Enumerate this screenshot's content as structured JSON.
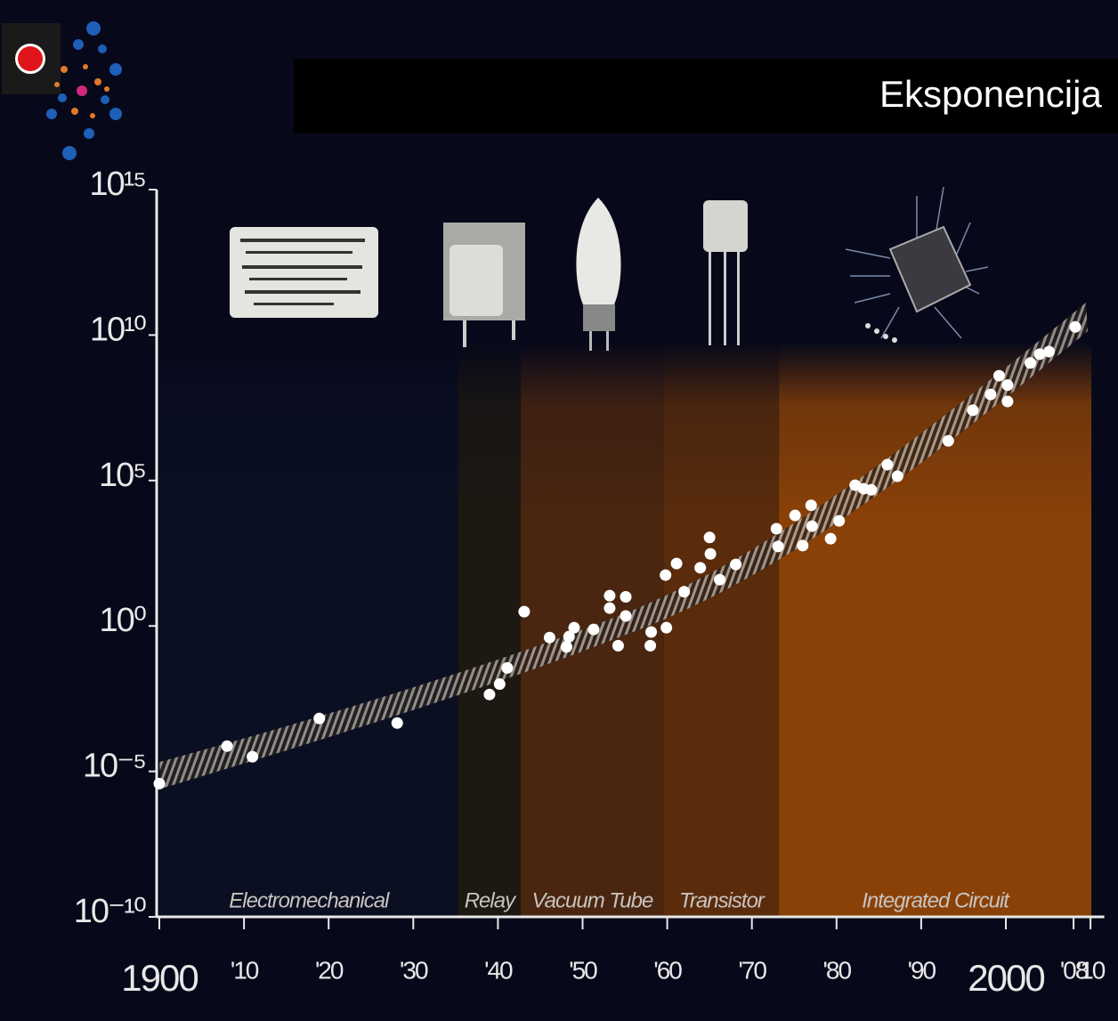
{
  "chart_data": {
    "type": "scatter",
    "title": "Eksponencija",
    "log_y": true,
    "color": "#ffffff",
    "x": [
      1900.0,
      1908.0,
      1911.0,
      1918.9,
      1928.1,
      1939.0,
      1940.2,
      1941.1,
      1943.1,
      1946.1,
      1948.1,
      1948.4,
      1949.0,
      1951.3,
      1953.2,
      1953.2,
      1954.2,
      1955.1,
      1955.1,
      1958.0,
      1958.1,
      1959.9,
      1959.8,
      1961.1,
      1962.0,
      1963.9,
      1965.0,
      1965.1,
      1966.2,
      1968.1,
      1972.9,
      1973.1,
      1975.1,
      1976.0,
      1977.0,
      1977.1,
      1979.3,
      1980.3,
      1982.2,
      1983.2,
      1984.1,
      1986.0,
      1987.2,
      1993.2,
      1996.1,
      1998.2,
      1999.2,
      2000.2,
      2000.2,
      2002.9,
      2004.0,
      2005.1,
      2008.2
    ],
    "values": [
      3.8e-06,
      7.4e-05,
      3.2e-05,
      0.00066,
      0.00046,
      0.0044,
      0.01,
      0.036,
      3.1,
      0.4,
      0.19,
      0.43,
      0.87,
      0.76,
      11,
      4.1,
      0.21,
      10,
      2.2,
      0.21,
      0.62,
      0.87,
      56,
      140,
      15,
      100,
      1100,
      300,
      39,
      130,
      2200,
      540,
      6300,
      580,
      14000,
      2700,
      1000,
      4100,
      69000,
      52000,
      48000,
      350000,
      140000,
      2300000,
      26000000,
      91000000,
      400000000.0,
      190000000.0,
      52000000.0,
      1100000000.0,
      2200000000.0,
      2700000000.0,
      19000000000.0
    ],
    "xlim": [
      1900,
      2011
    ],
    "ylim": [
      1e-10,
      1000000000000000.0
    ],
    "xticks": [
      {
        "value": 1900,
        "label": "1900"
      },
      {
        "value": 1910,
        "label": "'10"
      },
      {
        "value": 1920,
        "label": "'20"
      },
      {
        "value": 1930,
        "label": "'30"
      },
      {
        "value": 1940,
        "label": "'40"
      },
      {
        "value": 1950,
        "label": "'50"
      },
      {
        "value": 1960,
        "label": "'60"
      },
      {
        "value": 1970,
        "label": "'70"
      },
      {
        "value": 1980,
        "label": "'80"
      },
      {
        "value": 1990,
        "label": "'90"
      },
      {
        "value": 2000,
        "label": "2000"
      },
      {
        "value": 2008,
        "label": "'08"
      },
      {
        "value": 2010,
        "label": "'10"
      }
    ],
    "yticks": [
      {
        "value": 1000000000000000.0,
        "label": "10¹⁵"
      },
      {
        "value": 10000000000.0,
        "label": "10¹⁰"
      },
      {
        "value": 100000.0,
        "label": "10⁵"
      },
      {
        "value": 1,
        "label": "10⁰"
      },
      {
        "value": 1e-05,
        "label": "10⁻⁵"
      },
      {
        "value": 1e-10,
        "label": "10⁻¹⁰"
      }
    ],
    "eras": [
      {
        "name": "Electromechanical",
        "start": 1900,
        "end": 1935.3,
        "color": "#0b0f22"
      },
      {
        "name": "Relay",
        "start": 1935.3,
        "end": 1942.7,
        "color": "#1d1812"
      },
      {
        "name": "Vacuum Tube",
        "start": 1942.7,
        "end": 1959.6,
        "color": "#4a2610"
      },
      {
        "name": "Transistor",
        "start": 1959.6,
        "end": 1973.2,
        "color": "#5a2c0c"
      },
      {
        "name": "Integrated Circuit",
        "start": 1973.2,
        "end": 2010.1,
        "color": "#8a4108"
      }
    ]
  }
}
